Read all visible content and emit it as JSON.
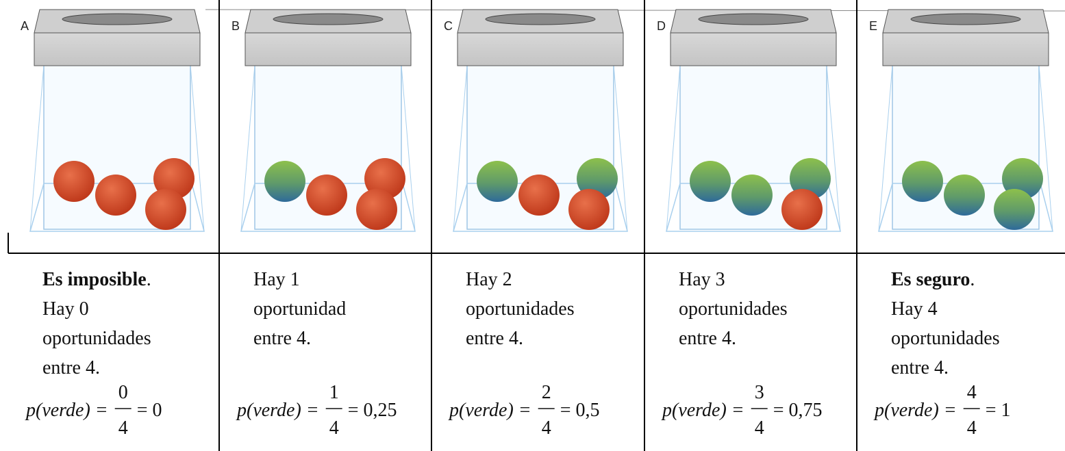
{
  "panels": [
    {
      "letter": "A",
      "lead": {
        "text": "Es imposible",
        "end": "."
      },
      "lines": [
        "Hay 0",
        "oportunidades",
        "entre 4."
      ],
      "formula": {
        "lhs": "p(verde) =",
        "num": "0",
        "den": "4",
        "result": "= 0"
      }
    },
    {
      "letter": "B",
      "lines": [
        "Hay 1",
        "oportunidad",
        "entre 4."
      ],
      "formula": {
        "lhs": "p(verde) =",
        "num": "1",
        "den": "4",
        "result": "= 0,25"
      }
    },
    {
      "letter": "C",
      "lines": [
        "Hay 2",
        "oportunidades",
        "entre 4."
      ],
      "formula": {
        "lhs": "p(verde) =",
        "num": "2",
        "den": "4",
        "result": "= 0,5"
      }
    },
    {
      "letter": "D",
      "lines": [
        "Hay 3",
        "oportunidades",
        "entre 4."
      ],
      "formula": {
        "lhs": "p(verde) =",
        "num": "3",
        "den": "4",
        "result": "= 0,75"
      }
    },
    {
      "letter": "E",
      "lead": {
        "text": "Es seguro",
        "end": "."
      },
      "lines": [
        "Hay 4",
        "oportunidades",
        "entre 4."
      ],
      "formula": {
        "lhs": "p(verde) =",
        "num": "4",
        "den": "4",
        "result": "= 1"
      }
    }
  ]
}
